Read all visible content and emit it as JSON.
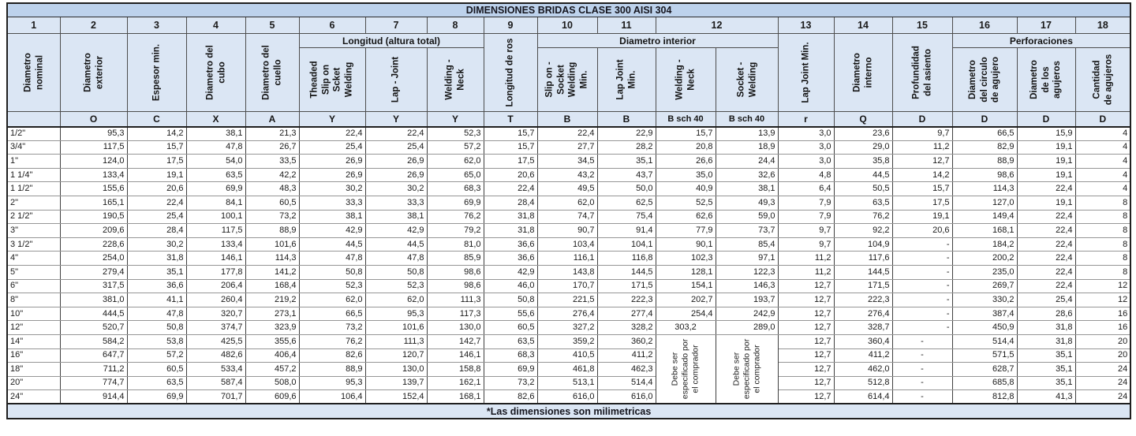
{
  "title": "DIMENSIONES BRIDAS CLASE 300 AISI 304",
  "footer_note": "*Las dimensiones son milimetricas",
  "colors": {
    "title_bg": "#bdd2ec",
    "header_bg": "#dbe6f4",
    "data_bg": "#ffffff",
    "border_major": "#1f1f1f",
    "border_row": "#969696",
    "border_col": "#3f3f3f"
  },
  "column_numbers": [
    "1",
    "2",
    "3",
    "4",
    "5",
    "6",
    "7",
    "8",
    "9",
    "10",
    "11",
    "12",
    "13",
    "14",
    "15",
    "16",
    "17",
    "18"
  ],
  "groups": {
    "longitud": "Longitud (altura total)",
    "diametro_interior": "Diametro interior",
    "perforaciones": "Perforaciones"
  },
  "headers": {
    "nominal": "Diametro\nnominal",
    "exterior": "Diametro\nexterior",
    "espesor": "Espesor min.",
    "cubo": "Diametro del\ncubo",
    "cuello": "Diametro del\ncuello",
    "theaded": "Theaded\nSlip on\nScket\nWelding",
    "lap_joint": "Lap - Joint",
    "welding_neck": "Welding -\nNeck",
    "longitud_rosca": "Longitud de ros",
    "slip_on_socket": "Slip on -\nSocket\nWelding\nMin.",
    "lap_joint_min": "Lap Joint\nMin.",
    "welding_neck_b": "Welding -\nNeck",
    "socket_welding_b": "Socket -\nWelding",
    "lap_joint_min_r": "Lap Joint Min.",
    "interno": "Diametro\ninterno",
    "profundidad": "Profundidad\ndel asiento",
    "circulo": "Diametro\ndel circulo\nde agujero",
    "agujeros": "Diametro\nde los\nagujeros",
    "cantidad": "Cantidad\nde agujeros"
  },
  "letters": [
    "",
    "O",
    "C",
    "X",
    "A",
    "Y",
    "Y",
    "Y",
    "T",
    "B",
    "B",
    "B sch 40",
    "B sch 40",
    "r",
    "Q",
    "D",
    "D",
    "D",
    "D"
  ],
  "merged_note": "Debe ser\nespecificado por\nel comprador",
  "rows": [
    {
      "size": "1/2\"",
      "values": [
        "95,3",
        "14,2",
        "38,1",
        "21,3",
        "22,4",
        "22,4",
        "52,3",
        "15,7",
        "22,4",
        "22,9",
        "15,7",
        "13,9",
        "3,0",
        "23,6",
        "9,7",
        "66,5",
        "15,9",
        "4"
      ]
    },
    {
      "size": "3/4\"",
      "values": [
        "117,5",
        "15,7",
        "47,8",
        "26,7",
        "25,4",
        "25,4",
        "57,2",
        "15,7",
        "27,7",
        "28,2",
        "20,8",
        "18,9",
        "3,0",
        "29,0",
        "11,2",
        "82,9",
        "19,1",
        "4"
      ]
    },
    {
      "size": "1\"",
      "values": [
        "124,0",
        "17,5",
        "54,0",
        "33,5",
        "26,9",
        "26,9",
        "62,0",
        "17,5",
        "34,5",
        "35,1",
        "26,6",
        "24,4",
        "3,0",
        "35,8",
        "12,7",
        "88,9",
        "19,1",
        "4"
      ]
    },
    {
      "size": "1 1/4\"",
      "values": [
        "133,4",
        "19,1",
        "63,5",
        "42,2",
        "26,9",
        "26,9",
        "65,0",
        "20,6",
        "43,2",
        "43,7",
        "35,0",
        "32,6",
        "4,8",
        "44,5",
        "14,2",
        "98,6",
        "19,1",
        "4"
      ]
    },
    {
      "size": "1 1/2\"",
      "values": [
        "155,6",
        "20,6",
        "69,9",
        "48,3",
        "30,2",
        "30,2",
        "68,3",
        "22,4",
        "49,5",
        "50,0",
        "40,9",
        "38,1",
        "6,4",
        "50,5",
        "15,7",
        "114,3",
        "22,4",
        "4"
      ]
    },
    {
      "size": "2\"",
      "values": [
        "165,1",
        "22,4",
        "84,1",
        "60,5",
        "33,3",
        "33,3",
        "69,9",
        "28,4",
        "62,0",
        "62,5",
        "52,5",
        "49,3",
        "7,9",
        "63,5",
        "17,5",
        "127,0",
        "19,1",
        "8"
      ]
    },
    {
      "size": "2 1/2\"",
      "values": [
        "190,5",
        "25,4",
        "100,1",
        "73,2",
        "38,1",
        "38,1",
        "76,2",
        "31,8",
        "74,7",
        "75,4",
        "62,6",
        "59,0",
        "7,9",
        "76,2",
        "19,1",
        "149,4",
        "22,4",
        "8"
      ]
    },
    {
      "size": "3\"",
      "values": [
        "209,6",
        "28,4",
        "117,5",
        "88,9",
        "42,9",
        "42,9",
        "79,2",
        "31,8",
        "90,7",
        "91,4",
        "77,9",
        "73,7",
        "9,7",
        "92,2",
        "20,6",
        "168,1",
        "22,4",
        "8"
      ]
    },
    {
      "size": "3 1/2\"",
      "values": [
        "228,6",
        "30,2",
        "133,4",
        "101,6",
        "44,5",
        "44,5",
        "81,0",
        "36,6",
        "103,4",
        "104,1",
        "90,1",
        "85,4",
        "9,7",
        "104,9",
        "-",
        "184,2",
        "22,4",
        "8"
      ]
    },
    {
      "size": "4\"",
      "values": [
        "254,0",
        "31,8",
        "146,1",
        "114,3",
        "47,8",
        "47,8",
        "85,9",
        "36,6",
        "116,1",
        "116,8",
        "102,3",
        "97,1",
        "11,2",
        "117,6",
        "-",
        "200,2",
        "22,4",
        "8"
      ]
    },
    {
      "size": "5\"",
      "values": [
        "279,4",
        "35,1",
        "177,8",
        "141,2",
        "50,8",
        "50,8",
        "98,6",
        "42,9",
        "143,8",
        "144,5",
        "128,1",
        "122,3",
        "11,2",
        "144,5",
        "-",
        "235,0",
        "22,4",
        "8"
      ]
    },
    {
      "size": "6\"",
      "values": [
        "317,5",
        "36,6",
        "206,4",
        "168,4",
        "52,3",
        "52,3",
        "98,6",
        "46,0",
        "170,7",
        "171,5",
        "154,1",
        "146,3",
        "12,7",
        "171,5",
        "-",
        "269,7",
        "22,4",
        "12"
      ]
    },
    {
      "size": "8\"",
      "values": [
        "381,0",
        "41,1",
        "260,4",
        "219,2",
        "62,0",
        "62,0",
        "111,3",
        "50,8",
        "221,5",
        "222,3",
        "202,7",
        "193,7",
        "12,7",
        "222,3",
        "-",
        "330,2",
        "25,4",
        "12"
      ]
    },
    {
      "size": "10\"",
      "values": [
        "444,5",
        "47,8",
        "320,7",
        "273,1",
        "66,5",
        "95,3",
        "117,3",
        "55,6",
        "276,4",
        "277,4",
        "254,4",
        "242,9",
        "12,7",
        "276,4",
        "-",
        "387,4",
        "28,6",
        "16"
      ]
    },
    {
      "size": "12\"",
      "values": [
        "520,7",
        "50,8",
        "374,7",
        "323,9",
        "73,2",
        "101,6",
        "130,0",
        "60,5",
        "327,2",
        "328,2",
        "303,2",
        "289,0",
        "12,7",
        "328,7",
        "-",
        "450,9",
        "31,8",
        "16"
      ],
      "center_idx": [
        10
      ]
    },
    {
      "size": "14\"",
      "values": [
        "584,2",
        "53,8",
        "425,5",
        "355,6",
        "76,2",
        "111,3",
        "142,7",
        "63,5",
        "359,2",
        "360,2",
        null,
        null,
        "12,7",
        "360,4",
        "-",
        "514,4",
        "31,8",
        "20"
      ],
      "m": "start",
      "center_idx": [
        14
      ]
    },
    {
      "size": "16\"",
      "values": [
        "647,7",
        "57,2",
        "482,6",
        "406,4",
        "82,6",
        "120,7",
        "146,1",
        "68,3",
        "410,5",
        "411,2",
        null,
        null,
        "12,7",
        "411,2",
        "-",
        "571,5",
        "35,1",
        "20"
      ],
      "center_idx": [
        14
      ]
    },
    {
      "size": "18\"",
      "values": [
        "711,2",
        "60,5",
        "533,4",
        "457,2",
        "88,9",
        "130,0",
        "158,8",
        "69,9",
        "461,8",
        "462,3",
        null,
        null,
        "12,7",
        "462,0",
        "-",
        "628,7",
        "35,1",
        "24"
      ],
      "center_idx": [
        14
      ]
    },
    {
      "size": "20\"",
      "values": [
        "774,7",
        "63,5",
        "587,4",
        "508,0",
        "95,3",
        "139,7",
        "162,1",
        "73,2",
        "513,1",
        "514,4",
        null,
        null,
        "12,7",
        "512,8",
        "-",
        "685,8",
        "35,1",
        "24"
      ],
      "center_idx": [
        14
      ]
    },
    {
      "size": "24\"",
      "values": [
        "914,4",
        "69,9",
        "701,7",
        "609,6",
        "106,4",
        "152,4",
        "168,1",
        "82,6",
        "616,0",
        "616,0",
        null,
        null,
        "12,7",
        "614,4",
        "-",
        "812,8",
        "41,3",
        "24"
      ],
      "center_idx": [
        14
      ]
    }
  ]
}
